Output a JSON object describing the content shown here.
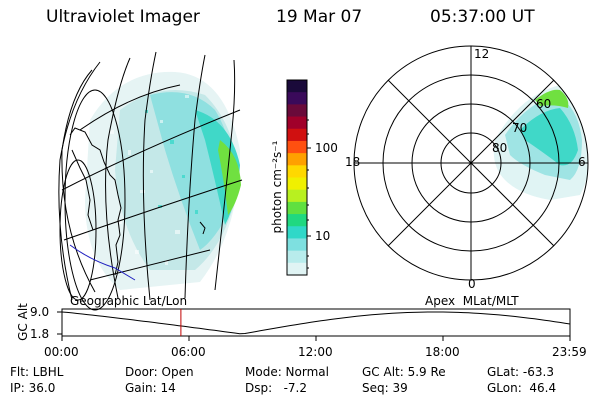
{
  "header": {
    "instrument": "Ultraviolet Imager",
    "date": "19 Mar 07",
    "time": "05:37:00 UT"
  },
  "colorbar": {
    "unit_label": "photon cm⁻²s⁻¹",
    "tick_labels": [
      "100",
      "10"
    ],
    "scale": "log",
    "colors": [
      "#1a0a3a",
      "#3a0a5a",
      "#6a0a3a",
      "#a0002a",
      "#d01010",
      "#ff5010",
      "#ffa000",
      "#ffd800",
      "#f0f000",
      "#b8f020",
      "#60e040",
      "#20d880",
      "#30d8c8",
      "#7ee0e0",
      "#b8ecec",
      "#e0f4f4"
    ]
  },
  "geo_panel": {
    "label": "Geographic Lat/Lon"
  },
  "polar_panel": {
    "label": "Apex  MLat/MLT",
    "mlt_labels": [
      "12",
      "18",
      "6",
      "0"
    ],
    "mlat_labels": [
      "60",
      "70",
      "80"
    ]
  },
  "timeline": {
    "ylabel": "GC Alt",
    "y_ticks": [
      "9.0",
      "1.8"
    ],
    "x_ticks": [
      "00:00",
      "06:00",
      "12:00",
      "18:00",
      "23:59"
    ],
    "current_time_hours": 5.617
  },
  "info": {
    "filter": "Flt: LBHL",
    "ip": "IP: 36.0",
    "door": "Door: Open",
    "gain": "Gain: 14",
    "mode": "Mode: Normal",
    "dsp": "Dsp:   -7.2",
    "gc_alt": "GC Alt: 5.9 Re",
    "seq": "Seq: 39",
    "glat": "GLat: -63.3",
    "glon": "GLon:  46.4"
  },
  "colors": {
    "aurora_low": "#d4eeee",
    "aurora_mid": "#7ee0e0",
    "aurora_high": "#30d8c8",
    "aurora_peak": "#60e040",
    "current_time_marker": "#c00000",
    "coastline_blue": "#2020c0"
  }
}
